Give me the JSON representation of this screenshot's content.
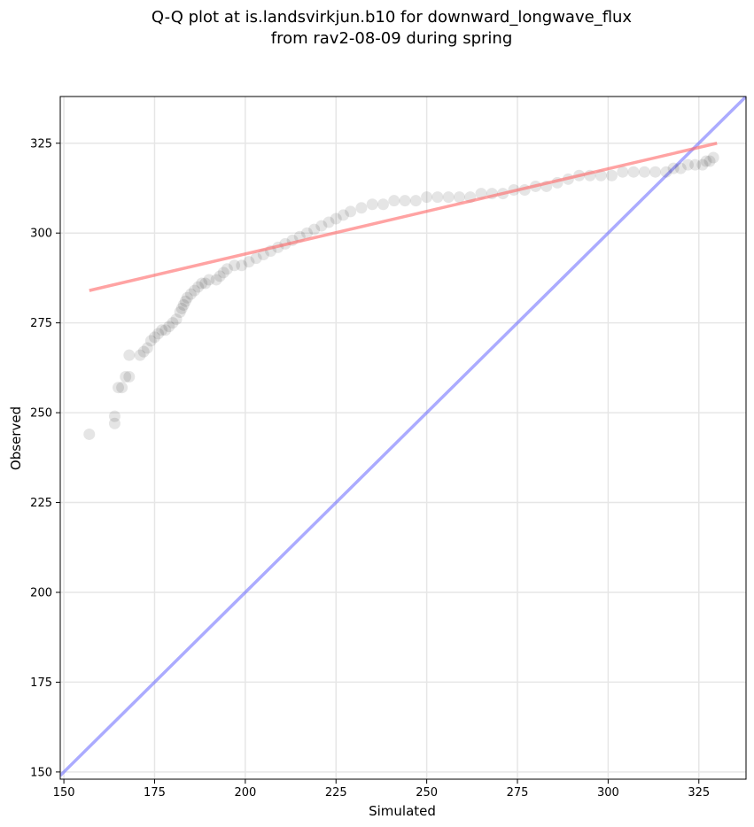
{
  "chart_data": {
    "type": "scatter",
    "title_line1": "Q-Q plot at is.landsvirkjun.b10 for downward_longwave_flux",
    "title_line2": "from rav2-08-09 during spring",
    "xlabel": "Simulated",
    "ylabel": "Observed",
    "xlim": [
      149,
      338
    ],
    "ylim": [
      148,
      338
    ],
    "xticks": [
      150,
      175,
      200,
      225,
      250,
      275,
      300,
      325
    ],
    "yticks": [
      150,
      175,
      200,
      225,
      250,
      275,
      300,
      325
    ],
    "grid": true,
    "colors": {
      "points": "#000000",
      "regression_line": "#ff6666",
      "identity_line": "#6666ff",
      "grid": "#e6e6e6"
    },
    "regression_line": {
      "x": [
        157,
        330
      ],
      "y": [
        284,
        325
      ]
    },
    "identity_line": {
      "x": [
        149,
        338
      ],
      "y": [
        149,
        338
      ]
    },
    "points": [
      [
        157,
        244
      ],
      [
        164,
        247
      ],
      [
        164,
        249
      ],
      [
        165,
        257
      ],
      [
        166,
        257
      ],
      [
        167,
        260
      ],
      [
        168,
        260
      ],
      [
        168,
        266
      ],
      [
        171,
        266
      ],
      [
        172,
        267
      ],
      [
        173,
        268
      ],
      [
        174,
        270
      ],
      [
        175,
        271
      ],
      [
        176,
        272
      ],
      [
        177,
        273
      ],
      [
        178,
        273
      ],
      [
        179,
        274
      ],
      [
        180,
        275
      ],
      [
        181,
        276
      ],
      [
        182,
        278
      ],
      [
        182.5,
        279
      ],
      [
        183,
        280
      ],
      [
        183.5,
        281
      ],
      [
        184,
        282
      ],
      [
        185,
        283
      ],
      [
        186,
        284
      ],
      [
        187,
        285
      ],
      [
        188,
        286
      ],
      [
        189,
        286
      ],
      [
        190,
        287
      ],
      [
        192,
        287
      ],
      [
        193,
        288
      ],
      [
        194,
        289
      ],
      [
        195,
        290
      ],
      [
        197,
        291
      ],
      [
        199,
        291
      ],
      [
        201,
        292
      ],
      [
        203,
        293
      ],
      [
        205,
        294
      ],
      [
        207,
        295
      ],
      [
        209,
        296
      ],
      [
        211,
        297
      ],
      [
        213,
        298
      ],
      [
        215,
        299
      ],
      [
        217,
        300
      ],
      [
        219,
        301
      ],
      [
        221,
        302
      ],
      [
        223,
        303
      ],
      [
        225,
        304
      ],
      [
        227,
        305
      ],
      [
        229,
        306
      ],
      [
        232,
        307
      ],
      [
        235,
        308
      ],
      [
        238,
        308
      ],
      [
        241,
        309
      ],
      [
        244,
        309
      ],
      [
        247,
        309
      ],
      [
        250,
        310
      ],
      [
        253,
        310
      ],
      [
        256,
        310
      ],
      [
        259,
        310
      ],
      [
        262,
        310
      ],
      [
        265,
        311
      ],
      [
        268,
        311
      ],
      [
        271,
        311
      ],
      [
        274,
        312
      ],
      [
        277,
        312
      ],
      [
        280,
        313
      ],
      [
        283,
        313
      ],
      [
        286,
        314
      ],
      [
        289,
        315
      ],
      [
        292,
        316
      ],
      [
        295,
        316
      ],
      [
        298,
        316
      ],
      [
        301,
        316
      ],
      [
        304,
        317
      ],
      [
        307,
        317
      ],
      [
        310,
        317
      ],
      [
        313,
        317
      ],
      [
        316,
        317
      ],
      [
        318,
        318
      ],
      [
        320,
        318
      ],
      [
        322,
        319
      ],
      [
        324,
        319
      ],
      [
        326,
        319
      ],
      [
        327,
        320
      ],
      [
        328,
        320
      ],
      [
        329,
        321
      ]
    ]
  }
}
